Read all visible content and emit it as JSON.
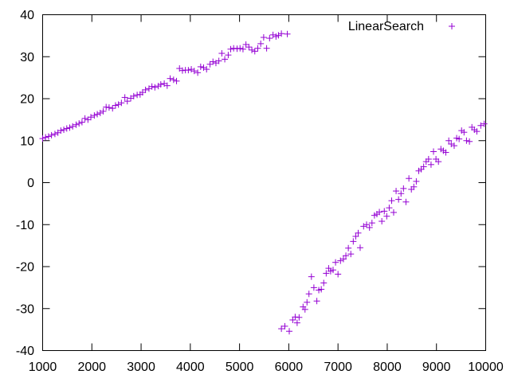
{
  "chart_data": {
    "type": "scatter",
    "title": "",
    "xlabel": "",
    "ylabel": "",
    "xlim": [
      1000,
      10000
    ],
    "ylim": [
      -40,
      40
    ],
    "xticks": [
      "1000",
      "2000",
      "3000",
      "4000",
      "5000",
      "6000",
      "7000",
      "8000",
      "9000",
      "10000"
    ],
    "yticks": [
      "40",
      "30",
      "20",
      "10",
      "0",
      "-10",
      "-20",
      "-30",
      "-40"
    ],
    "grid": false,
    "legend_position": "top-right",
    "marker": "plus",
    "series": [
      {
        "name": "LinearSearch",
        "color": "#9400d3",
        "points": [
          [
            1000,
            10.5
          ],
          [
            1060,
            10.8
          ],
          [
            1120,
            11.0
          ],
          [
            1180,
            11.3
          ],
          [
            1250,
            11.6
          ],
          [
            1310,
            11.9
          ],
          [
            1370,
            12.4
          ],
          [
            1430,
            12.6
          ],
          [
            1490,
            12.9
          ],
          [
            1550,
            13.1
          ],
          [
            1610,
            13.4
          ],
          [
            1680,
            13.8
          ],
          [
            1740,
            14.1
          ],
          [
            1800,
            14.4
          ],
          [
            1860,
            15.3
          ],
          [
            1920,
            15.0
          ],
          [
            1980,
            15.6
          ],
          [
            2050,
            16.0
          ],
          [
            2110,
            16.3
          ],
          [
            2170,
            16.6
          ],
          [
            2230,
            17.0
          ],
          [
            2290,
            18.0
          ],
          [
            2350,
            17.9
          ],
          [
            2420,
            17.7
          ],
          [
            2480,
            18.4
          ],
          [
            2540,
            18.6
          ],
          [
            2600,
            19.0
          ],
          [
            2670,
            20.3
          ],
          [
            2720,
            19.4
          ],
          [
            2790,
            20.1
          ],
          [
            2850,
            20.6
          ],
          [
            2920,
            20.9
          ],
          [
            2980,
            21.0
          ],
          [
            3030,
            21.5
          ],
          [
            3090,
            22.1
          ],
          [
            3160,
            22.4
          ],
          [
            3220,
            22.9
          ],
          [
            3280,
            22.7
          ],
          [
            3350,
            23.0
          ],
          [
            3400,
            23.4
          ],
          [
            3470,
            23.6
          ],
          [
            3530,
            23.1
          ],
          [
            3590,
            24.8
          ],
          [
            3660,
            24.5
          ],
          [
            3720,
            24.2
          ],
          [
            3780,
            27.2
          ],
          [
            3840,
            26.7
          ],
          [
            3900,
            26.8
          ],
          [
            3960,
            26.8
          ],
          [
            4020,
            27.0
          ],
          [
            4080,
            26.6
          ],
          [
            4150,
            26.2
          ],
          [
            4210,
            27.6
          ],
          [
            4270,
            27.4
          ],
          [
            4330,
            27.0
          ],
          [
            4400,
            28.2
          ],
          [
            4460,
            28.8
          ],
          [
            4520,
            28.5
          ],
          [
            4580,
            29.0
          ],
          [
            4640,
            30.8
          ],
          [
            4700,
            29.4
          ],
          [
            4770,
            30.4
          ],
          [
            4820,
            31.8
          ],
          [
            4880,
            32.0
          ],
          [
            4950,
            31.9
          ],
          [
            5010,
            32.0
          ],
          [
            5070,
            31.8
          ],
          [
            5130,
            32.9
          ],
          [
            5190,
            32.3
          ],
          [
            5250,
            31.6
          ],
          [
            5310,
            31.3
          ],
          [
            5370,
            32.0
          ],
          [
            5430,
            33.1
          ],
          [
            5490,
            34.6
          ],
          [
            5550,
            32.0
          ],
          [
            5610,
            34.4
          ],
          [
            5680,
            35.2
          ],
          [
            5740,
            34.8
          ],
          [
            5790,
            35.1
          ],
          [
            5850,
            35.5
          ],
          [
            5970,
            35.4
          ],
          [
            5850,
            -34.8
          ],
          [
            5920,
            -34.2
          ],
          [
            6010,
            -35.4
          ],
          [
            6080,
            -32.7
          ],
          [
            6130,
            -32.0
          ],
          [
            6170,
            -33.4
          ],
          [
            6210,
            -32.1
          ],
          [
            6290,
            -29.6
          ],
          [
            6330,
            -30.2
          ],
          [
            6370,
            -28.5
          ],
          [
            6410,
            -26.5
          ],
          [
            6460,
            -22.4
          ],
          [
            6510,
            -25.0
          ],
          [
            6570,
            -28.2
          ],
          [
            6610,
            -25.6
          ],
          [
            6660,
            -25.4
          ],
          [
            6710,
            -23.9
          ],
          [
            6760,
            -21.6
          ],
          [
            6810,
            -20.4
          ],
          [
            6850,
            -21.1
          ],
          [
            6900,
            -20.8
          ],
          [
            6950,
            -19.0
          ],
          [
            7000,
            -21.8
          ],
          [
            7050,
            -18.6
          ],
          [
            7110,
            -18.2
          ],
          [
            7160,
            -17.4
          ],
          [
            7210,
            -15.6
          ],
          [
            7260,
            -17.0
          ],
          [
            7310,
            -14.0
          ],
          [
            7360,
            -12.8
          ],
          [
            7410,
            -12.0
          ],
          [
            7450,
            -15.5
          ],
          [
            7520,
            -10.4
          ],
          [
            7580,
            -10.0
          ],
          [
            7640,
            -10.7
          ],
          [
            7690,
            -9.6
          ],
          [
            7740,
            -7.8
          ],
          [
            7790,
            -7.5
          ],
          [
            7840,
            -7.0
          ],
          [
            7890,
            -9.2
          ],
          [
            7940,
            -6.8
          ],
          [
            7990,
            -8.0
          ],
          [
            8040,
            -6.0
          ],
          [
            8090,
            -4.3
          ],
          [
            8130,
            -7.1
          ],
          [
            8180,
            -2.0
          ],
          [
            8230,
            -4.0
          ],
          [
            8280,
            -2.6
          ],
          [
            8330,
            -1.4
          ],
          [
            8380,
            -4.6
          ],
          [
            8440,
            1.0
          ],
          [
            8490,
            -1.6
          ],
          [
            8540,
            -1.0
          ],
          [
            8590,
            0.3
          ],
          [
            8640,
            2.8
          ],
          [
            8690,
            3.2
          ],
          [
            8740,
            3.8
          ],
          [
            8790,
            5.0
          ],
          [
            8840,
            5.6
          ],
          [
            8890,
            4.3
          ],
          [
            8940,
            7.4
          ],
          [
            8990,
            5.6
          ],
          [
            9040,
            5.0
          ],
          [
            9090,
            8.0
          ],
          [
            9140,
            7.6
          ],
          [
            9190,
            7.2
          ],
          [
            9250,
            10.0
          ],
          [
            9300,
            9.2
          ],
          [
            9360,
            8.8
          ],
          [
            9410,
            10.6
          ],
          [
            9460,
            10.4
          ],
          [
            9510,
            12.4
          ],
          [
            9560,
            12.0
          ],
          [
            9610,
            10.0
          ],
          [
            9670,
            9.8
          ],
          [
            9720,
            13.2
          ],
          [
            9770,
            12.6
          ],
          [
            9820,
            12.2
          ],
          [
            9900,
            13.6
          ],
          [
            9970,
            14.0
          ]
        ]
      }
    ]
  }
}
